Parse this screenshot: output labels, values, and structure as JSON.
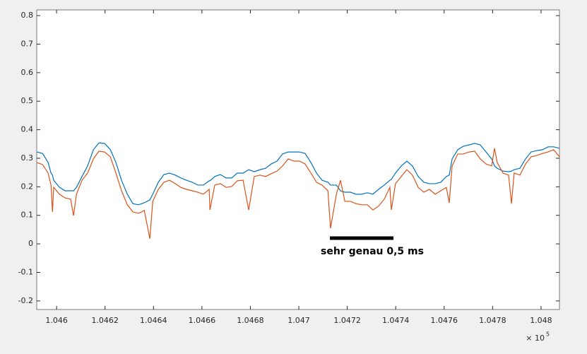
{
  "chart_data": {
    "type": "line",
    "x": [
      1.045918,
      1.045942,
      1.045965,
      1.045977,
      1.045983,
      1.045988,
      1.046012,
      1.046035,
      1.046058,
      1.04607,
      1.046082,
      1.046105,
      1.046128,
      1.046152,
      1.046175,
      1.046198,
      1.046222,
      1.046245,
      1.046268,
      1.046292,
      1.046315,
      1.046338,
      1.046362,
      1.046385,
      1.046397,
      1.04642,
      1.046443,
      1.046466,
      1.04649,
      1.046513,
      1.046536,
      1.04656,
      1.046583,
      1.046606,
      1.04663,
      1.046633,
      1.046653,
      1.046676,
      1.0467,
      1.046723,
      1.046746,
      1.04677,
      1.046793,
      1.046816,
      1.04684,
      1.046863,
      1.046886,
      1.04691,
      1.046933,
      1.046956,
      1.04698,
      1.047003,
      1.047026,
      1.04705,
      1.047073,
      1.047096,
      1.04712,
      1.047131,
      1.047155,
      1.047172,
      1.04719,
      1.047213,
      1.047236,
      1.047259,
      1.047283,
      1.047306,
      1.047329,
      1.047353,
      1.047376,
      1.047382,
      1.047399,
      1.047423,
      1.047446,
      1.047469,
      1.047493,
      1.047516,
      1.047539,
      1.047563,
      1.047586,
      1.047609,
      1.047621,
      1.047633,
      1.047656,
      1.047679,
      1.047703,
      1.047726,
      1.047749,
      1.047773,
      1.047796,
      1.047808,
      1.047819,
      1.047843,
      1.047866,
      1.047878,
      1.047889,
      1.047913,
      1.047936,
      1.047959,
      1.047983,
      1.048006,
      1.048029,
      1.048052,
      1.048076
    ],
    "series": [
      {
        "color": "#0072bd",
        "values": [
          0.322,
          0.317,
          0.285,
          0.248,
          0.241,
          0.223,
          0.198,
          0.186,
          0.186,
          0.186,
          0.198,
          0.236,
          0.273,
          0.33,
          0.354,
          0.352,
          0.33,
          0.285,
          0.223,
          0.174,
          0.141,
          0.137,
          0.144,
          0.154,
          0.174,
          0.216,
          0.243,
          0.248,
          0.241,
          0.231,
          0.223,
          0.216,
          0.206,
          0.206,
          0.221,
          0.221,
          0.236,
          0.243,
          0.231,
          0.231,
          0.248,
          0.248,
          0.26,
          0.253,
          0.26,
          0.265,
          0.28,
          0.29,
          0.315,
          0.322,
          0.322,
          0.322,
          0.317,
          0.285,
          0.248,
          0.223,
          0.216,
          0.206,
          0.206,
          0.186,
          0.181,
          0.181,
          0.174,
          0.174,
          0.179,
          0.174,
          0.191,
          0.206,
          0.223,
          0.226,
          0.248,
          0.273,
          0.29,
          0.273,
          0.236,
          0.216,
          0.211,
          0.211,
          0.216,
          0.236,
          0.241,
          0.298,
          0.33,
          0.342,
          0.347,
          0.352,
          0.347,
          0.322,
          0.298,
          0.273,
          0.265,
          0.255,
          0.253,
          0.255,
          0.26,
          0.265,
          0.298,
          0.322,
          0.327,
          0.33,
          0.34,
          0.34,
          0.335
        ]
      },
      {
        "color": "#d95319",
        "values": [
          0.285,
          0.278,
          0.248,
          0.206,
          0.112,
          0.198,
          0.174,
          0.161,
          0.157,
          0.099,
          0.174,
          0.223,
          0.248,
          0.298,
          0.325,
          0.322,
          0.305,
          0.248,
          0.186,
          0.137,
          0.112,
          0.107,
          0.117,
          0.018,
          0.149,
          0.191,
          0.216,
          0.223,
          0.211,
          0.198,
          0.191,
          0.186,
          0.181,
          0.174,
          0.191,
          0.119,
          0.206,
          0.211,
          0.198,
          0.201,
          0.221,
          0.223,
          0.119,
          0.236,
          0.241,
          0.236,
          0.246,
          0.255,
          0.273,
          0.298,
          0.29,
          0.29,
          0.28,
          0.248,
          0.216,
          0.206,
          0.186,
          0.055,
          0.174,
          0.223,
          0.149,
          0.149,
          0.141,
          0.137,
          0.137,
          0.119,
          0.132,
          0.157,
          0.198,
          0.119,
          0.211,
          0.236,
          0.26,
          0.241,
          0.198,
          0.181,
          0.191,
          0.174,
          0.186,
          0.198,
          0.144,
          0.273,
          0.315,
          0.315,
          0.322,
          0.325,
          0.298,
          0.28,
          0.273,
          0.335,
          0.285,
          0.248,
          0.241,
          0.141,
          0.248,
          0.241,
          0.28,
          0.305,
          0.31,
          0.317,
          0.322,
          0.33,
          0.305
        ]
      }
    ],
    "xlim": [
      1.045918,
      1.048076
    ],
    "xticks": [
      1.046,
      1.0462,
      1.0464,
      1.0466,
      1.0468,
      1.047,
      1.0472,
      1.0474,
      1.0476,
      1.0478,
      1.048
    ],
    "x_exponent": {
      "base": "× 10",
      "power": "5"
    },
    "ylim": [
      -0.23,
      0.82
    ],
    "yticks": [
      -0.2,
      -0.1,
      0,
      0.1,
      0.2,
      0.3,
      0.4,
      0.5,
      0.6,
      0.7,
      0.8
    ],
    "annotation": "sehr genau 0,5 ms"
  }
}
